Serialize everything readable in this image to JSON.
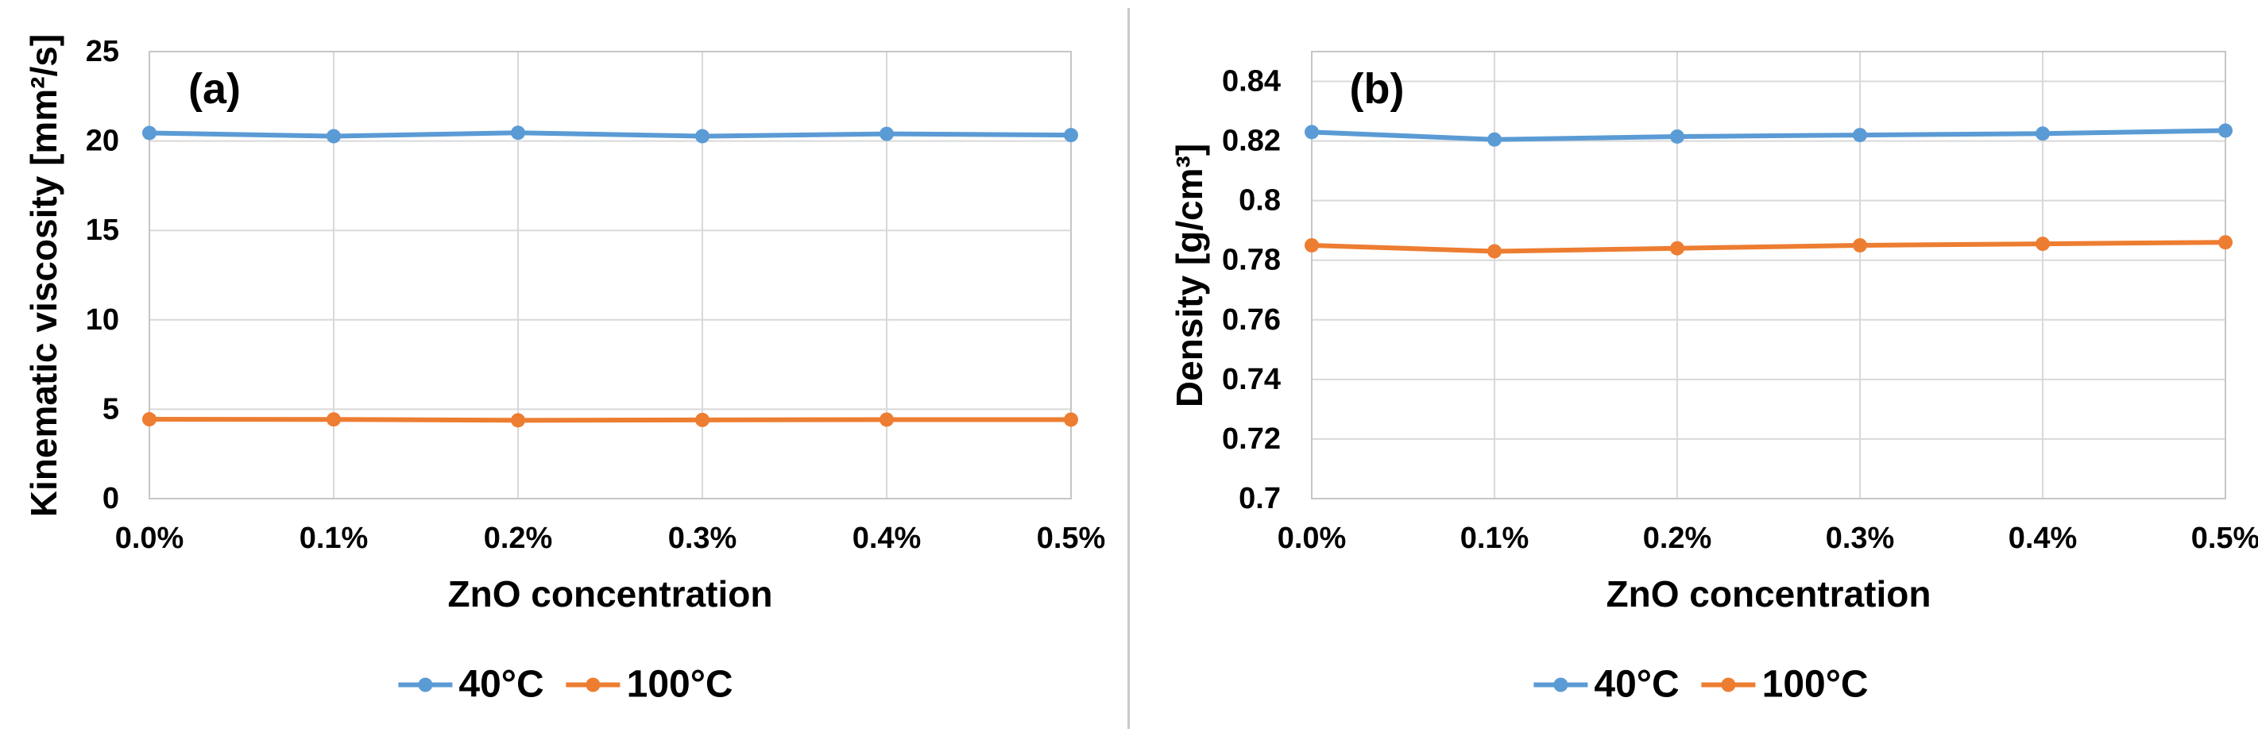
{
  "figure": {
    "description_labels": {
      "panel_a": "(a)",
      "panel_b": "(b)"
    }
  },
  "colors": {
    "series_40c": "#5B9BD5",
    "series_100c": "#ED7D31",
    "gridline": "#D9D9D9",
    "axis_line": "#C6C6C6",
    "text": "#000000",
    "divider": "#C9C9C9"
  },
  "chart_data": [
    {
      "type": "line",
      "panel_label": "(a)",
      "title": "",
      "xlabel": "ZnO concentration",
      "ylabel": "Kinematic viscosity [mm²/s]",
      "categories": [
        "0.0%",
        "0.1%",
        "0.2%",
        "0.3%",
        "0.4%",
        "0.5%"
      ],
      "series": [
        {
          "name": "40°C",
          "color": "#5B9BD5",
          "values": [
            20.45,
            20.27,
            20.46,
            20.27,
            20.4,
            20.33
          ]
        },
        {
          "name": "100°C",
          "color": "#ED7D31",
          "values": [
            4.44,
            4.43,
            4.38,
            4.4,
            4.42,
            4.42
          ]
        }
      ],
      "ylim": [
        0,
        25
      ],
      "ytick_values": [
        0,
        5,
        10,
        15,
        20,
        25
      ],
      "ytick_labels": [
        "0",
        "5",
        "10",
        "15",
        "20",
        "25"
      ],
      "grid": true,
      "legend_position": "bottom"
    },
    {
      "type": "line",
      "panel_label": "(b)",
      "title": "",
      "xlabel": "ZnO concentration",
      "ylabel": "Density [g/cm³]",
      "categories": [
        "0.0%",
        "0.1%",
        "0.2%",
        "0.3%",
        "0.4%",
        "0.5%"
      ],
      "series": [
        {
          "name": "40°C",
          "color": "#5B9BD5",
          "values": [
            0.823,
            0.8205,
            0.8215,
            0.822,
            0.8225,
            0.8235
          ]
        },
        {
          "name": "100°C",
          "color": "#ED7D31",
          "values": [
            0.785,
            0.783,
            0.784,
            0.785,
            0.7855,
            0.786
          ]
        }
      ],
      "ylim": [
        0.7,
        0.85
      ],
      "ytick_values": [
        0.7,
        0.72,
        0.74,
        0.76,
        0.78,
        0.8,
        0.82,
        0.84
      ],
      "ytick_labels": [
        "0.7",
        "0.72",
        "0.74",
        "0.76",
        "0.78",
        "0.8",
        "0.82",
        "0.84"
      ],
      "grid": true,
      "legend_position": "bottom"
    }
  ]
}
